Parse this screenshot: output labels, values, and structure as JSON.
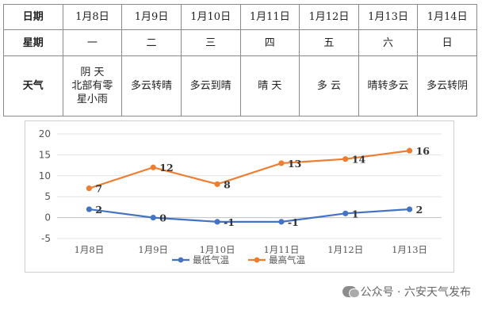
{
  "table": {
    "row_headers": [
      "日期",
      "星期",
      "天气"
    ],
    "dates": [
      "1月8日",
      "1月9日",
      "1月10日",
      "1月11日",
      "1月12日",
      "1月13日",
      "1月14日"
    ],
    "weekdays": [
      "一",
      "二",
      "三",
      "四",
      "五",
      "六",
      "日"
    ],
    "weather": [
      [
        "阴 天",
        "北部有零",
        "星小雨"
      ],
      [
        "多云转晴"
      ],
      [
        "多云到晴"
      ],
      [
        "晴 天"
      ],
      [
        "多 云"
      ],
      [
        "晴转多云"
      ],
      [
        "多云转阴"
      ]
    ]
  },
  "chart_data": {
    "type": "line",
    "categories": [
      "1月8日",
      "1月9日",
      "1月10日",
      "1月11日",
      "1月12日",
      "1月13日"
    ],
    "series": [
      {
        "name": "最低气温",
        "color": "#4472c4",
        "values": [
          2,
          0,
          -1,
          -1,
          1,
          2
        ]
      },
      {
        "name": "最高气温",
        "color": "#ed7d31",
        "values": [
          7,
          12,
          8,
          13,
          14,
          16
        ]
      }
    ],
    "ylim": [
      -5,
      20
    ],
    "yticks": [
      -5,
      0,
      5,
      10,
      15,
      20
    ],
    "grid": true,
    "legend": "bottom",
    "data_labels": true,
    "title": "",
    "xlabel": "",
    "ylabel": ""
  },
  "watermark": {
    "text": "公众号 · 六安天气发布"
  }
}
